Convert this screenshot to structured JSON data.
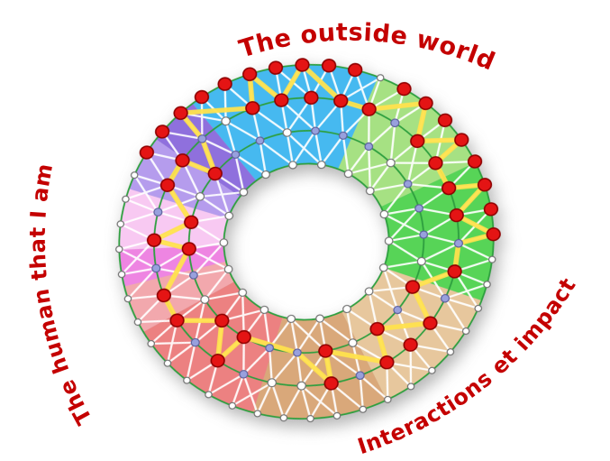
{
  "labels": {
    "color": "#c40000",
    "top": {
      "text": "The outside world"
    },
    "left": {
      "text": "The human that I am"
    },
    "bottom_right": {
      "text": "Interactions et impact"
    }
  },
  "diagram": {
    "colors": {
      "ring": "#2e9f3f",
      "mesh": "#ffffff",
      "highlight": "#ffe14d",
      "node_white": "#ffffff",
      "node_stroke": "#707070",
      "node_lavender": "#98a0dd",
      "node_lavender_stroke": "#5c5f9b",
      "node_red": "#e41414",
      "node_red_stroke": "#8e0000"
    },
    "sectors": [
      {
        "name": "blue",
        "start": -28,
        "end": 32,
        "color": "#46b9f0"
      },
      {
        "name": "green-light",
        "start": 32,
        "end": 74,
        "color": "#a6e183"
      },
      {
        "name": "green",
        "start": 74,
        "end": 120,
        "color": "#57d457"
      },
      {
        "name": "tan-light",
        "start": 120,
        "end": 164,
        "color": "#e7c79d"
      },
      {
        "name": "tan",
        "start": 164,
        "end": 206,
        "color": "#d9a87a"
      },
      {
        "name": "red",
        "start": 206,
        "end": 250,
        "color": "#ec8181"
      },
      {
        "name": "pink-salmon",
        "start": 250,
        "end": 266,
        "color": "#f2a8ad"
      },
      {
        "name": "orchid",
        "start": 266,
        "end": 278,
        "color": "#ee85e2"
      },
      {
        "name": "pink-light",
        "start": 278,
        "end": 298,
        "color": "#f8c9f2"
      },
      {
        "name": "purple-light",
        "start": 298,
        "end": 316,
        "color": "#b59ced"
      },
      {
        "name": "purple",
        "start": 316,
        "end": 332,
        "color": "#8f70dd"
      }
    ],
    "rings": [
      {
        "name": "outer",
        "radius": 204,
        "count": 44,
        "node_radius": 3.6
      },
      {
        "name": "middle",
        "radius": 166,
        "count": 32,
        "node_radius": 4.6
      },
      {
        "name": "inner",
        "radius": 128,
        "count": 26,
        "node_radius": 4.4
      },
      {
        "name": "core",
        "radius": 90,
        "count": 18,
        "node_radius": 4.2
      }
    ],
    "red_nodes": {
      "outer": [
        38,
        39,
        40,
        41,
        42,
        43,
        0,
        1,
        2,
        3,
        5,
        6,
        7,
        8,
        9,
        10,
        11,
        12
      ],
      "middle": [
        0,
        1,
        2,
        3,
        5,
        6,
        7,
        8,
        10,
        12,
        13,
        14,
        16,
        20,
        22,
        23,
        25,
        27,
        28,
        31
      ],
      "inner": [
        9,
        11,
        13,
        16,
        17,
        20,
        21,
        23
      ]
    },
    "lavender_nodes": {
      "middle": [
        4,
        9,
        11,
        15,
        19,
        21,
        24,
        26,
        29
      ],
      "inner": [
        1,
        2,
        3,
        5,
        6,
        7,
        10,
        14,
        15,
        19,
        24,
        25
      ]
    },
    "yellow_path": [
      [
        0,
        43
      ],
      [
        1,
        0
      ],
      [
        0,
        1
      ],
      [
        1,
        2
      ],
      [
        1,
        3
      ],
      [
        0,
        6
      ],
      [
        1,
        5
      ],
      [
        0,
        8
      ],
      [
        1,
        6
      ],
      [
        1,
        7
      ],
      [
        0,
        10
      ],
      [
        1,
        8
      ],
      [
        0,
        12
      ],
      [
        1,
        9
      ],
      [
        1,
        10
      ],
      [
        2,
        9
      ],
      [
        1,
        12
      ],
      [
        2,
        11
      ],
      [
        1,
        14
      ],
      [
        2,
        13
      ],
      [
        1,
        16
      ],
      [
        2,
        14
      ],
      [
        2,
        16
      ],
      [
        1,
        20
      ],
      [
        2,
        17
      ],
      [
        1,
        22
      ],
      [
        1,
        23
      ],
      [
        2,
        20
      ],
      [
        1,
        25
      ],
      [
        2,
        21
      ],
      [
        1,
        27
      ],
      [
        1,
        28
      ],
      [
        2,
        23
      ],
      [
        1,
        29
      ],
      [
        0,
        40
      ],
      [
        1,
        31
      ],
      [
        0,
        43
      ]
    ]
  }
}
